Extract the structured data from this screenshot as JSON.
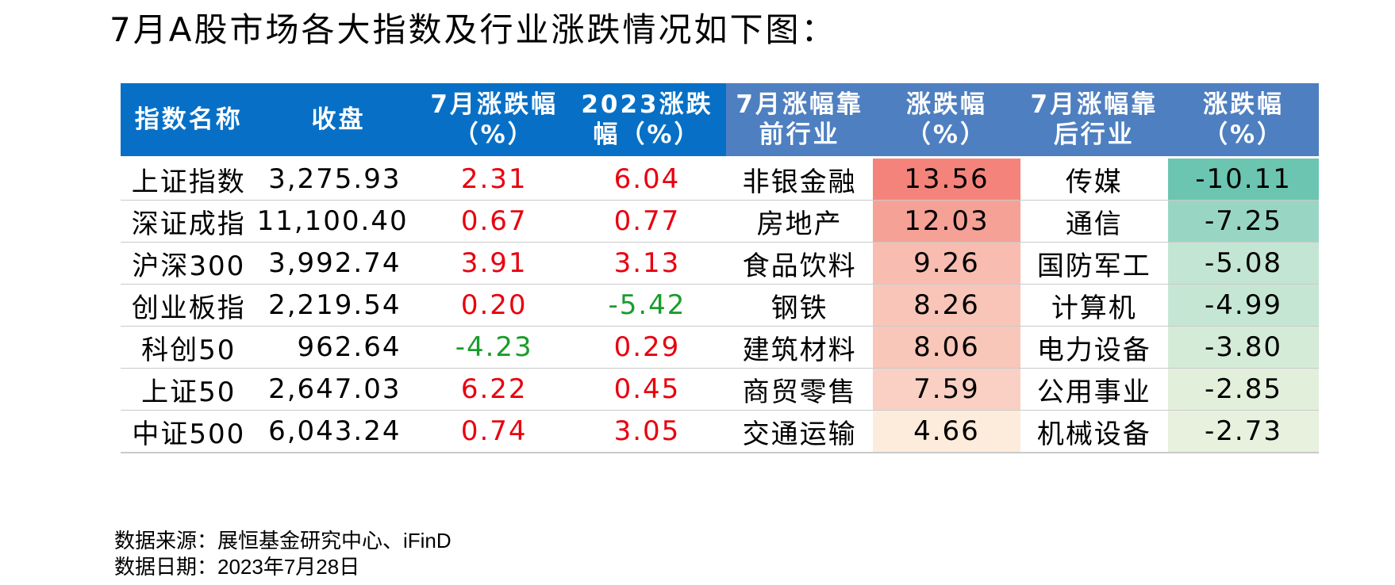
{
  "title": "7月A股市场各大指数及行业涨跌情况如下图：",
  "table": {
    "headers": [
      "指数名称",
      "收盘",
      "7月涨跌幅（%）",
      "2023涨跌幅（%）",
      "7月涨幅靠前行业",
      "涨跌幅（%）",
      "7月涨幅靠后行业",
      "涨跌幅（%）"
    ],
    "rows": [
      {
        "index": "上证指数",
        "close": "3,275.93",
        "jul": "2.31",
        "ytd": "6.04",
        "top_ind": "非银金融",
        "top_chg": "13.56",
        "bot_ind": "传媒",
        "bot_chg": "-10.11"
      },
      {
        "index": "深证成指",
        "close": "11,100.40",
        "jul": "0.67",
        "ytd": "0.77",
        "top_ind": "房地产",
        "top_chg": "12.03",
        "bot_ind": "通信",
        "bot_chg": "-7.25"
      },
      {
        "index": "沪深300",
        "close": "3,992.74",
        "jul": "3.91",
        "ytd": "3.13",
        "top_ind": "食品饮料",
        "top_chg": "9.26",
        "bot_ind": "国防军工",
        "bot_chg": "-5.08"
      },
      {
        "index": "创业板指",
        "close": "2,219.54",
        "jul": "0.20",
        "ytd": "-5.42",
        "top_ind": "钢铁",
        "top_chg": "8.26",
        "bot_ind": "计算机",
        "bot_chg": "-4.99"
      },
      {
        "index": "科创50",
        "close": "962.64",
        "jul": "-4.23",
        "ytd": "0.29",
        "top_ind": "建筑材料",
        "top_chg": "8.06",
        "bot_ind": "电力设备",
        "bot_chg": "-3.80"
      },
      {
        "index": "上证50",
        "close": "2,647.03",
        "jul": "6.22",
        "ytd": "0.45",
        "top_ind": "商贸零售",
        "top_chg": "7.59",
        "bot_ind": "公用事业",
        "bot_chg": "-2.85"
      },
      {
        "index": "中证500",
        "close": "6,043.24",
        "jul": "0.74",
        "ytd": "3.05",
        "top_ind": "交通运输",
        "top_chg": "4.66",
        "bot_ind": "机械设备",
        "bot_chg": "-2.73"
      }
    ]
  },
  "colors": {
    "header_blue": "#0770c6",
    "header_blue_light": "#4e7fc0",
    "up_text": "#e8000f",
    "down_text": "#1a9c2c",
    "top_heat": [
      "#f4847b",
      "#f6a196",
      "#f8bcb1",
      "#f9c5b9",
      "#f9c6ba",
      "#fad0c4",
      "#fdebdc"
    ],
    "bottom_heat": [
      "#6cc5b1",
      "#98d6c3",
      "#c3e5d3",
      "#c6e6d4",
      "#d4ebd8",
      "#e2efdb",
      "#e7f1dd"
    ]
  },
  "source": {
    "line1": "数据来源：展恒基金研究中心、iFinD",
    "line2": "数据日期：2023年7月28日"
  }
}
